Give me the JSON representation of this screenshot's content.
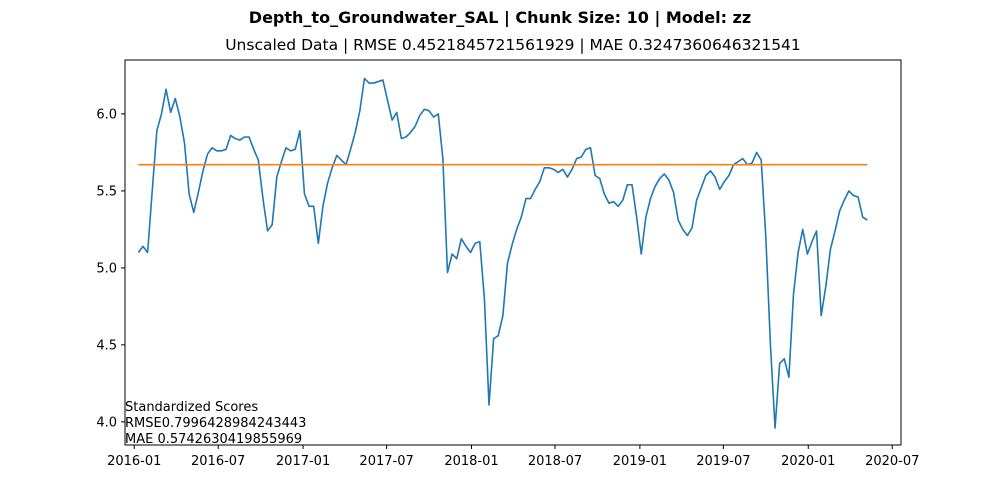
{
  "figure": {
    "suptitle": "Depth_to_Groundwater_SAL | Chunk Size: 10 | Model: zz",
    "subtitle": "Unscaled Data | RMSE 0.4521845721561929 | MAE 0.3247360646321541"
  },
  "annotation": {
    "heading": "Standardized Scores",
    "rmse": "RMSE0.7996428984243443",
    "mae": "MAE 0.5742630419855969"
  },
  "chart_data": {
    "type": "line",
    "title": "",
    "xlabel": "",
    "ylabel": "",
    "xlim": [
      "2015-12-12",
      "2020-07-20"
    ],
    "ylim": [
      3.85,
      6.35
    ],
    "grid": false,
    "x_ticks": [
      "2016-01",
      "2016-07",
      "2017-01",
      "2017-07",
      "2018-01",
      "2018-07",
      "2019-01",
      "2019-07",
      "2020-01",
      "2020-07"
    ],
    "y_ticks": [
      4.0,
      4.5,
      5.0,
      5.5,
      6.0
    ],
    "series": [
      {
        "color": "#1f77b4",
        "points": [
          [
            "2016-01-10",
            5.1
          ],
          [
            "2016-01-20",
            5.14
          ],
          [
            "2016-01-30",
            5.1
          ],
          [
            "2016-02-09",
            5.5
          ],
          [
            "2016-02-19",
            5.89
          ],
          [
            "2016-02-29",
            6.0
          ],
          [
            "2016-03-10",
            6.16
          ],
          [
            "2016-03-20",
            6.01
          ],
          [
            "2016-03-30",
            6.1
          ],
          [
            "2016-04-09",
            5.98
          ],
          [
            "2016-04-19",
            5.81
          ],
          [
            "2016-04-29",
            5.48
          ],
          [
            "2016-05-09",
            5.36
          ],
          [
            "2016-05-19",
            5.49
          ],
          [
            "2016-05-29",
            5.63
          ],
          [
            "2016-06-08",
            5.74
          ],
          [
            "2016-06-18",
            5.78
          ],
          [
            "2016-06-28",
            5.76
          ],
          [
            "2016-07-08",
            5.76
          ],
          [
            "2016-07-18",
            5.77
          ],
          [
            "2016-07-28",
            5.86
          ],
          [
            "2016-08-07",
            5.84
          ],
          [
            "2016-08-17",
            5.83
          ],
          [
            "2016-08-27",
            5.85
          ],
          [
            "2016-09-06",
            5.85
          ],
          [
            "2016-09-16",
            5.77
          ],
          [
            "2016-09-26",
            5.7
          ],
          [
            "2016-10-06",
            5.45
          ],
          [
            "2016-10-16",
            5.24
          ],
          [
            "2016-10-26",
            5.28
          ],
          [
            "2016-11-05",
            5.59
          ],
          [
            "2016-11-15",
            5.69
          ],
          [
            "2016-11-25",
            5.78
          ],
          [
            "2016-12-05",
            5.76
          ],
          [
            "2016-12-15",
            5.77
          ],
          [
            "2016-12-25",
            5.89
          ],
          [
            "2017-01-04",
            5.48
          ],
          [
            "2017-01-14",
            5.4
          ],
          [
            "2017-01-24",
            5.4
          ],
          [
            "2017-02-03",
            5.16
          ],
          [
            "2017-02-13",
            5.4
          ],
          [
            "2017-02-23",
            5.55
          ],
          [
            "2017-03-05",
            5.65
          ],
          [
            "2017-03-15",
            5.73
          ],
          [
            "2017-03-25",
            5.7
          ],
          [
            "2017-04-04",
            5.67
          ],
          [
            "2017-04-14",
            5.77
          ],
          [
            "2017-04-24",
            5.88
          ],
          [
            "2017-05-04",
            6.02
          ],
          [
            "2017-05-14",
            6.23
          ],
          [
            "2017-05-24",
            6.2
          ],
          [
            "2017-06-03",
            6.2
          ],
          [
            "2017-06-13",
            6.21
          ],
          [
            "2017-06-23",
            6.22
          ],
          [
            "2017-07-03",
            6.09
          ],
          [
            "2017-07-13",
            5.96
          ],
          [
            "2017-07-23",
            6.01
          ],
          [
            "2017-08-02",
            5.84
          ],
          [
            "2017-08-12",
            5.85
          ],
          [
            "2017-08-22",
            5.88
          ],
          [
            "2017-09-01",
            5.92
          ],
          [
            "2017-09-11",
            5.99
          ],
          [
            "2017-09-21",
            6.03
          ],
          [
            "2017-10-01",
            6.02
          ],
          [
            "2017-10-11",
            5.98
          ],
          [
            "2017-10-21",
            6.0
          ],
          [
            "2017-10-31",
            5.71
          ],
          [
            "2017-11-10",
            4.97
          ],
          [
            "2017-11-20",
            5.09
          ],
          [
            "2017-11-30",
            5.06
          ],
          [
            "2017-12-10",
            5.19
          ],
          [
            "2017-12-20",
            5.14
          ],
          [
            "2017-12-30",
            5.1
          ],
          [
            "2018-01-09",
            5.16
          ],
          [
            "2018-01-19",
            5.17
          ],
          [
            "2018-01-29",
            4.8
          ],
          [
            "2018-02-08",
            4.11
          ],
          [
            "2018-02-18",
            4.54
          ],
          [
            "2018-02-28",
            4.56
          ],
          [
            "2018-03-10",
            4.69
          ],
          [
            "2018-03-20",
            5.03
          ],
          [
            "2018-03-30",
            5.15
          ],
          [
            "2018-04-09",
            5.25
          ],
          [
            "2018-04-19",
            5.33
          ],
          [
            "2018-04-29",
            5.45
          ],
          [
            "2018-05-09",
            5.45
          ],
          [
            "2018-05-19",
            5.51
          ],
          [
            "2018-05-29",
            5.56
          ],
          [
            "2018-06-08",
            5.65
          ],
          [
            "2018-06-18",
            5.65
          ],
          [
            "2018-06-28",
            5.64
          ],
          [
            "2018-07-08",
            5.62
          ],
          [
            "2018-07-18",
            5.64
          ],
          [
            "2018-07-28",
            5.59
          ],
          [
            "2018-08-07",
            5.64
          ],
          [
            "2018-08-17",
            5.71
          ],
          [
            "2018-08-27",
            5.72
          ],
          [
            "2018-09-06",
            5.77
          ],
          [
            "2018-09-16",
            5.78
          ],
          [
            "2018-09-26",
            5.6
          ],
          [
            "2018-10-06",
            5.58
          ],
          [
            "2018-10-16",
            5.48
          ],
          [
            "2018-10-26",
            5.42
          ],
          [
            "2018-11-05",
            5.43
          ],
          [
            "2018-11-15",
            5.4
          ],
          [
            "2018-11-25",
            5.44
          ],
          [
            "2018-12-05",
            5.54
          ],
          [
            "2018-12-15",
            5.54
          ],
          [
            "2018-12-25",
            5.33
          ],
          [
            "2019-01-04",
            5.09
          ],
          [
            "2019-01-14",
            5.33
          ],
          [
            "2019-01-24",
            5.45
          ],
          [
            "2019-02-03",
            5.53
          ],
          [
            "2019-02-13",
            5.58
          ],
          [
            "2019-02-23",
            5.61
          ],
          [
            "2019-03-05",
            5.57
          ],
          [
            "2019-03-15",
            5.49
          ],
          [
            "2019-03-25",
            5.31
          ],
          [
            "2019-04-04",
            5.25
          ],
          [
            "2019-04-14",
            5.21
          ],
          [
            "2019-04-24",
            5.26
          ],
          [
            "2019-05-04",
            5.44
          ],
          [
            "2019-05-14",
            5.52
          ],
          [
            "2019-05-24",
            5.6
          ],
          [
            "2019-06-03",
            5.63
          ],
          [
            "2019-06-13",
            5.59
          ],
          [
            "2019-06-23",
            5.51
          ],
          [
            "2019-07-03",
            5.56
          ],
          [
            "2019-07-13",
            5.6
          ],
          [
            "2019-07-23",
            5.67
          ],
          [
            "2019-08-02",
            5.69
          ],
          [
            "2019-08-12",
            5.71
          ],
          [
            "2019-08-22",
            5.67
          ],
          [
            "2019-09-01",
            5.68
          ],
          [
            "2019-09-11",
            5.75
          ],
          [
            "2019-09-21",
            5.7
          ],
          [
            "2019-10-01",
            5.2
          ],
          [
            "2019-10-11",
            4.5
          ],
          [
            "2019-10-21",
            3.96
          ],
          [
            "2019-10-31",
            4.38
          ],
          [
            "2019-11-10",
            4.41
          ],
          [
            "2019-11-20",
            4.29
          ],
          [
            "2019-11-30",
            4.83
          ],
          [
            "2019-12-10",
            5.1
          ],
          [
            "2019-12-20",
            5.25
          ],
          [
            "2019-12-30",
            5.09
          ],
          [
            "2020-01-09",
            5.17
          ],
          [
            "2020-01-19",
            5.24
          ],
          [
            "2020-01-29",
            4.69
          ],
          [
            "2020-02-08",
            4.88
          ],
          [
            "2020-02-18",
            5.12
          ],
          [
            "2020-02-28",
            5.24
          ],
          [
            "2020-03-09",
            5.37
          ],
          [
            "2020-03-19",
            5.44
          ],
          [
            "2020-03-29",
            5.5
          ],
          [
            "2020-04-08",
            5.47
          ],
          [
            "2020-04-18",
            5.46
          ],
          [
            "2020-04-28",
            5.33
          ],
          [
            "2020-05-08",
            5.31
          ]
        ]
      },
      {
        "color": "#ff7f0e",
        "points": [
          [
            "2016-01-10",
            5.67
          ],
          [
            "2020-05-08",
            5.67
          ]
        ]
      }
    ]
  }
}
